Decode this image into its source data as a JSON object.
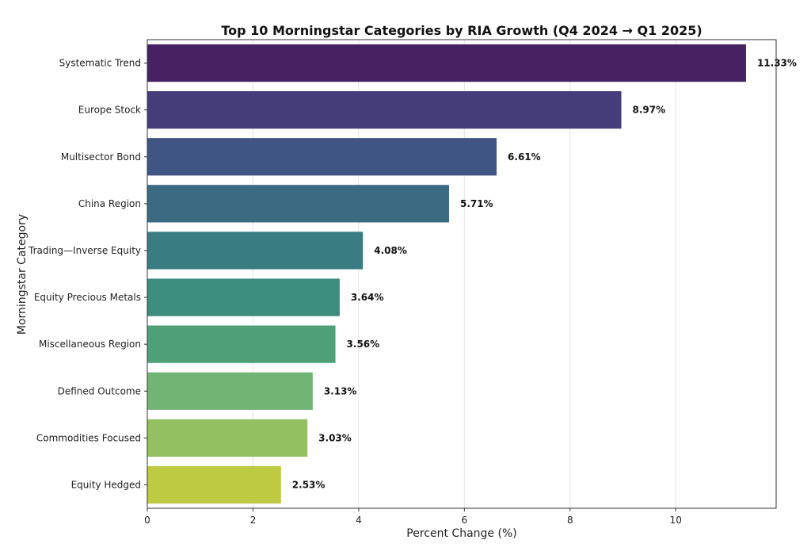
{
  "chart_data": {
    "type": "bar",
    "orientation": "horizontal",
    "title": "Top 10 Morningstar Categories by RIA Growth (Q4 2024 → Q1 2025)",
    "xlabel": "Percent Change (%)",
    "ylabel": "Morningstar Category",
    "categories": [
      "Systematic Trend",
      "Europe Stock",
      "Multisector Bond",
      "China Region",
      "Trading—Inverse Equity",
      "Equity Precious Metals",
      "Miscellaneous Region",
      "Defined Outcome",
      "Commodities Focused",
      "Equity Hedged"
    ],
    "values": [
      11.33,
      8.97,
      6.61,
      5.71,
      4.08,
      3.64,
      3.56,
      3.13,
      3.03,
      2.53
    ],
    "value_labels": [
      "11.33%",
      "8.97%",
      "6.61%",
      "5.71%",
      "4.08%",
      "3.64%",
      "3.56%",
      "3.13%",
      "3.03%",
      "2.53%"
    ],
    "xlim": [
      0,
      11.9
    ],
    "xticks": [
      0,
      2,
      4,
      6,
      8,
      10
    ],
    "xtick_labels": [
      "0",
      "2",
      "4",
      "6",
      "8",
      "10"
    ],
    "grid": "vertical",
    "legend": "none",
    "bar_colors": [
      "#472263",
      "#453c7a",
      "#3f5685",
      "#3b6b83",
      "#397d82",
      "#3c8d7e",
      "#4ea079",
      "#72b473",
      "#93c162",
      "#bdca42"
    ]
  }
}
